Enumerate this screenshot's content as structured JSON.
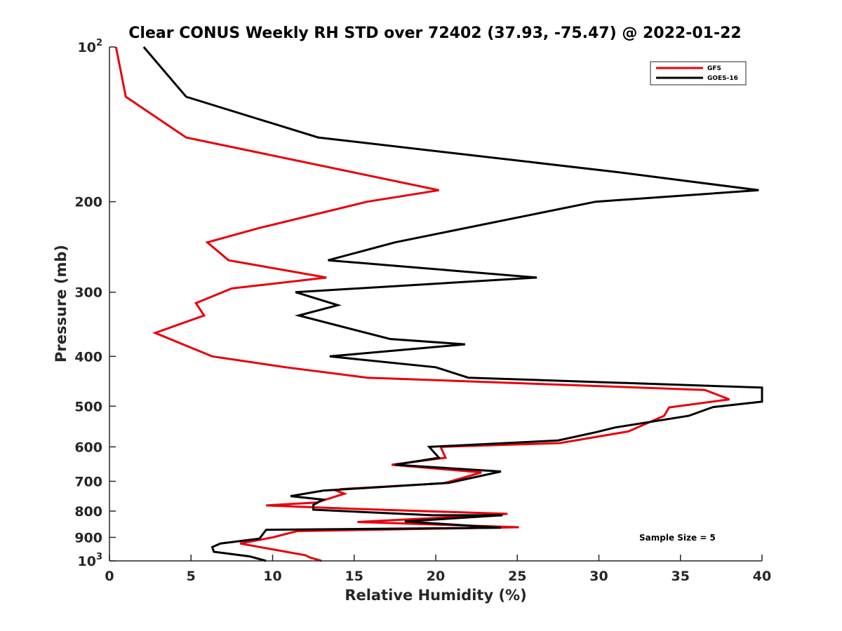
{
  "chart_data": {
    "type": "line",
    "title": "Clear CONUS Weekly RH STD over 72402 (37.93, -75.47) @ 2022-01-22",
    "xlabel": "Relative Humidity (%)",
    "ylabel": "Pressure (mb)",
    "xlim": [
      0,
      40
    ],
    "ylim": [
      100,
      1000
    ],
    "yscale": "log",
    "y_reversed": true,
    "grid": false,
    "legend_position": "top-right",
    "x_ticks": [
      "0",
      "5",
      "10",
      "15",
      "20",
      "25",
      "30",
      "35",
      "40"
    ],
    "y_ticks": [
      {
        "value": 100,
        "base": "10",
        "exp": "2"
      },
      {
        "value": 200,
        "label": "200"
      },
      {
        "value": 300,
        "label": "300"
      },
      {
        "value": 400,
        "label": "400"
      },
      {
        "value": 500,
        "label": "500"
      },
      {
        "value": 600,
        "label": "600"
      },
      {
        "value": 700,
        "label": "700"
      },
      {
        "value": 800,
        "label": "800"
      },
      {
        "value": 900,
        "label": "900"
      },
      {
        "value": 1000,
        "base": "10",
        "exp": "3"
      }
    ],
    "annotation": "Sample Size = 5",
    "series": [
      {
        "name": "GFS",
        "color": "#e8000b",
        "points": [
          [
            0.4,
            100
          ],
          [
            1.0,
            125
          ],
          [
            4.7,
            150
          ],
          [
            20.2,
            190
          ],
          [
            15.8,
            200
          ],
          [
            9.2,
            225
          ],
          [
            6.0,
            240
          ],
          [
            7.3,
            260
          ],
          [
            13.3,
            281
          ],
          [
            7.5,
            295
          ],
          [
            5.3,
            315
          ],
          [
            5.8,
            333
          ],
          [
            2.8,
            360
          ],
          [
            4.5,
            379
          ],
          [
            6.3,
            400
          ],
          [
            10.8,
            420
          ],
          [
            15.8,
            440
          ],
          [
            36.5,
            465
          ],
          [
            38.0,
            485
          ],
          [
            34.3,
            503
          ],
          [
            34.0,
            522
          ],
          [
            31.8,
            560
          ],
          [
            27.6,
            590
          ],
          [
            20.3,
            600
          ],
          [
            20.6,
            630
          ],
          [
            17.3,
            650
          ],
          [
            22.8,
            673
          ],
          [
            20.5,
            706
          ],
          [
            14.2,
            725
          ],
          [
            13.9,
            730
          ],
          [
            14.4,
            740
          ],
          [
            12.7,
            770
          ],
          [
            9.6,
            780
          ],
          [
            15.0,
            792
          ],
          [
            24.4,
            810
          ],
          [
            20.0,
            825
          ],
          [
            15.2,
            840
          ],
          [
            25.1,
            860
          ],
          [
            11.5,
            875
          ],
          [
            10.0,
            900
          ],
          [
            8.0,
            925
          ],
          [
            12.0,
            975
          ],
          [
            12.3,
            985
          ],
          [
            13.0,
            1000
          ]
        ]
      },
      {
        "name": "GOES-16",
        "color": "#000000",
        "points": [
          [
            2.1,
            100
          ],
          [
            4.7,
            125
          ],
          [
            12.8,
            150
          ],
          [
            31.0,
            175
          ],
          [
            39.8,
            190
          ],
          [
            29.8,
            200
          ],
          [
            17.5,
            240
          ],
          [
            13.4,
            260
          ],
          [
            26.2,
            281
          ],
          [
            11.4,
            300
          ],
          [
            14.0,
            318
          ],
          [
            11.6,
            333
          ],
          [
            17.2,
            370
          ],
          [
            21.8,
            379
          ],
          [
            13.5,
            400
          ],
          [
            20.0,
            420
          ],
          [
            22.0,
            440
          ],
          [
            40.0,
            460
          ],
          [
            40.0,
            490
          ],
          [
            37.0,
            502
          ],
          [
            35.5,
            522
          ],
          [
            31.0,
            550
          ],
          [
            29.8,
            562
          ],
          [
            27.5,
            583
          ],
          [
            19.6,
            600
          ],
          [
            20.2,
            630
          ],
          [
            17.5,
            650
          ],
          [
            24.0,
            670
          ],
          [
            20.8,
            705
          ],
          [
            13.1,
            730
          ],
          [
            11.1,
            748
          ],
          [
            13.1,
            760
          ],
          [
            12.5,
            778
          ],
          [
            12.5,
            795
          ],
          [
            19.8,
            815
          ],
          [
            24.1,
            815
          ],
          [
            18.1,
            838
          ],
          [
            24.0,
            862
          ],
          [
            9.6,
            870
          ],
          [
            9.2,
            905
          ],
          [
            6.8,
            925
          ],
          [
            6.3,
            940
          ],
          [
            6.4,
            960
          ],
          [
            8.6,
            980
          ],
          [
            9.6,
            1000
          ]
        ]
      }
    ]
  }
}
